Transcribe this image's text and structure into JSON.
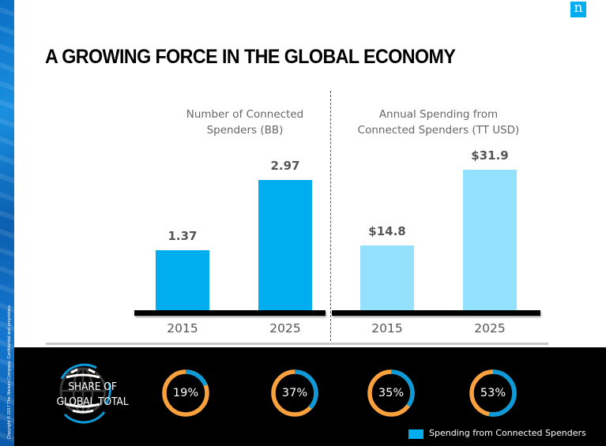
{
  "title": "A GROWING FORCE IN THE GLOBAL ECONOMY",
  "logo": {
    "icon": "nielsen-n-logo",
    "glyph": "n"
  },
  "copyright": "Copyright © 2017 The Nielsen Company. Confidential and proprietary.",
  "colors": {
    "bar_left": "#00aeef",
    "bar_right": "#93e1fd",
    "donut_share": "#0d9ad8",
    "donut_rest": "#f9a13c",
    "legend_swatch": "#00aeef"
  },
  "chart_data": [
    {
      "type": "bar",
      "title": "Number of Connected Spenders (BB)",
      "title_lines": [
        "Number of Connected",
        "Spenders (BB)"
      ],
      "categories": [
        "2015",
        "2025"
      ],
      "values": [
        1.37,
        2.97
      ],
      "value_labels": [
        "1.37",
        "2.97"
      ],
      "xlabel": "",
      "ylabel": "",
      "ylim": [
        0,
        3.5
      ],
      "grid": false
    },
    {
      "type": "bar",
      "title": "Annual Spending from Connected Spenders (TT USD)",
      "title_lines": [
        "Annual Spending from",
        "Connected Spenders (TT USD)"
      ],
      "categories": [
        "2015",
        "2025"
      ],
      "values": [
        14.8,
        31.9
      ],
      "value_labels": [
        "$14.8",
        "$31.9"
      ],
      "xlabel": "",
      "ylabel": "",
      "ylim": [
        0,
        35
      ],
      "grid": false
    },
    {
      "type": "pie",
      "title": "SHARE OF GLOBAL TOTAL",
      "title_lines": [
        "SHARE OF",
        "GLOBAL TOTAL"
      ],
      "donuts": [
        {
          "group": "Number of Connected Spenders",
          "year": "2015",
          "value": 19,
          "label": "19%"
        },
        {
          "group": "Number of Connected Spenders",
          "year": "2025",
          "value": 37,
          "label": "37%"
        },
        {
          "group": "Annual Spending",
          "year": "2015",
          "value": 35,
          "label": "35%"
        },
        {
          "group": "Annual Spending",
          "year": "2025",
          "value": 53,
          "label": "53%"
        }
      ],
      "legend": [
        {
          "label": "Spending from Connected Spenders"
        }
      ],
      "legend_position": "bottom-right"
    }
  ]
}
